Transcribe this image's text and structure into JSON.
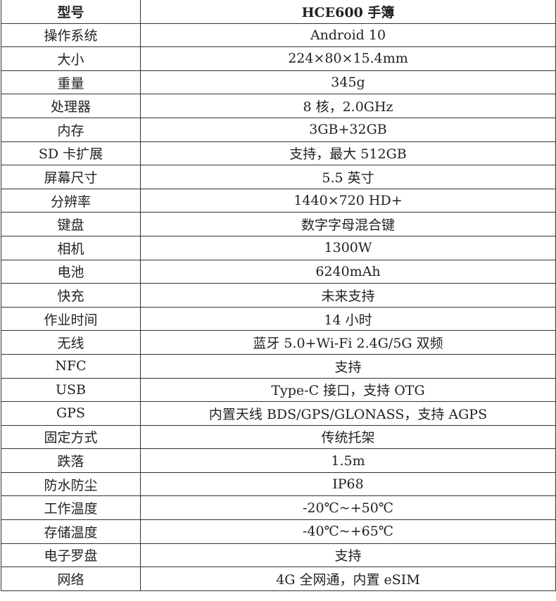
{
  "header": {
    "key": "型号",
    "value": "HCE600 手簿"
  },
  "rows": [
    {
      "key": "操作系统",
      "value": "Android 10"
    },
    {
      "key": "大小",
      "value": "224×80×15.4mm"
    },
    {
      "key": "重量",
      "value": "345g"
    },
    {
      "key": "处理器",
      "value": "8 核，2.0GHz"
    },
    {
      "key": "内存",
      "value": "3GB+32GB"
    },
    {
      "key": "SD 卡扩展",
      "value": "支持，最大 512GB"
    },
    {
      "key": "屏幕尺寸",
      "value": "5.5 英寸"
    },
    {
      "key": "分辨率",
      "value": "1440×720 HD+"
    },
    {
      "key": "键盘",
      "value": "数字字母混合键"
    },
    {
      "key": "相机",
      "value": "1300W"
    },
    {
      "key": "电池",
      "value": "6240mAh"
    },
    {
      "key": "快充",
      "value": "未来支持"
    },
    {
      "key": "作业时间",
      "value": "14 小时"
    },
    {
      "key": "无线",
      "value": "蓝牙 5.0+Wi-Fi 2.4G/5G 双频"
    },
    {
      "key": "NFC",
      "value": "支持"
    },
    {
      "key": "USB",
      "value": "Type-C 接口，支持 OTG"
    },
    {
      "key": "GPS",
      "value": "内置天线 BDS/GPS/GLONASS，支持 AGPS"
    },
    {
      "key": "固定方式",
      "value": "传统托架"
    },
    {
      "key": "跌落",
      "value": "1.5m"
    },
    {
      "key": "防水防尘",
      "value": "IP68"
    },
    {
      "key": "工作温度",
      "value": "-20℃~+50℃"
    },
    {
      "key": "存储温度",
      "value": "-40℃~+65℃"
    },
    {
      "key": "电子罗盘",
      "value": "支持"
    },
    {
      "key": "网络",
      "value": "4G 全网通，内置 eSIM"
    }
  ]
}
